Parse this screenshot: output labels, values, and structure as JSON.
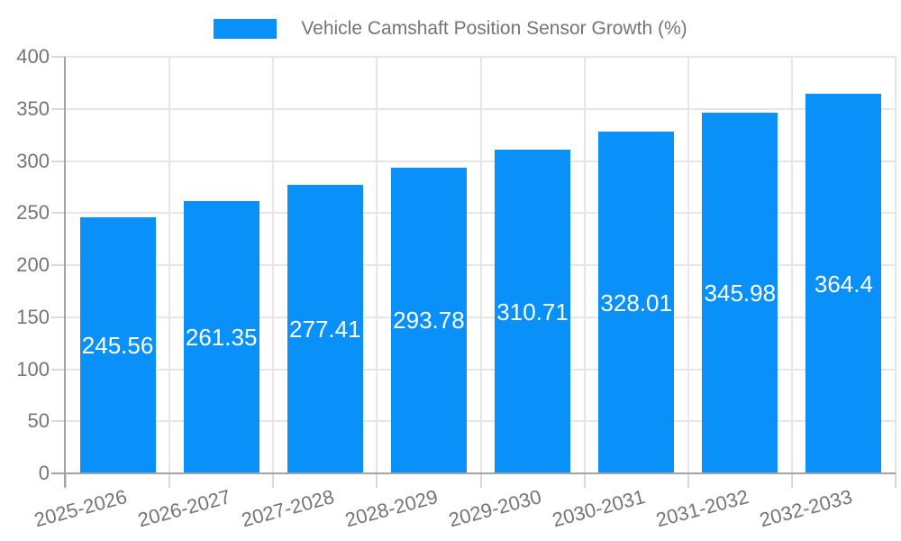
{
  "legend": {
    "label": "Vehicle Camshaft Position Sensor Growth (%)"
  },
  "chart_data": {
    "type": "bar",
    "title": "Vehicle Camshaft Position Sensor Growth (%)",
    "categories": [
      "2025-2026",
      "2026-2027",
      "2027-2028",
      "2028-2029",
      "2029-2030",
      "2030-2031",
      "2031-2032",
      "2032-2033"
    ],
    "values": [
      245.56,
      261.35,
      277.41,
      293.78,
      310.71,
      328.01,
      345.98,
      364.4
    ],
    "value_labels": [
      "245.56",
      "261.35",
      "277.41",
      "293.78",
      "310.71",
      "328.01",
      "345.98",
      "364.4"
    ],
    "xlabel": "",
    "ylabel": "",
    "ylim": [
      0,
      400
    ],
    "ytick_step": 50,
    "ytick_labels": [
      "0",
      "50",
      "100",
      "150",
      "200",
      "250",
      "300",
      "350",
      "400"
    ],
    "grid": true,
    "legend_position": "top-center",
    "colors": {
      "bar": "#0991f9",
      "value_label": "#ffffff",
      "axis_label": "#757575",
      "legend_text": "#757575",
      "gridline": "#e6e6e6",
      "axis_line": "#a3a3a3",
      "tick": "#d9d9d9",
      "background": "#ffffff"
    }
  }
}
